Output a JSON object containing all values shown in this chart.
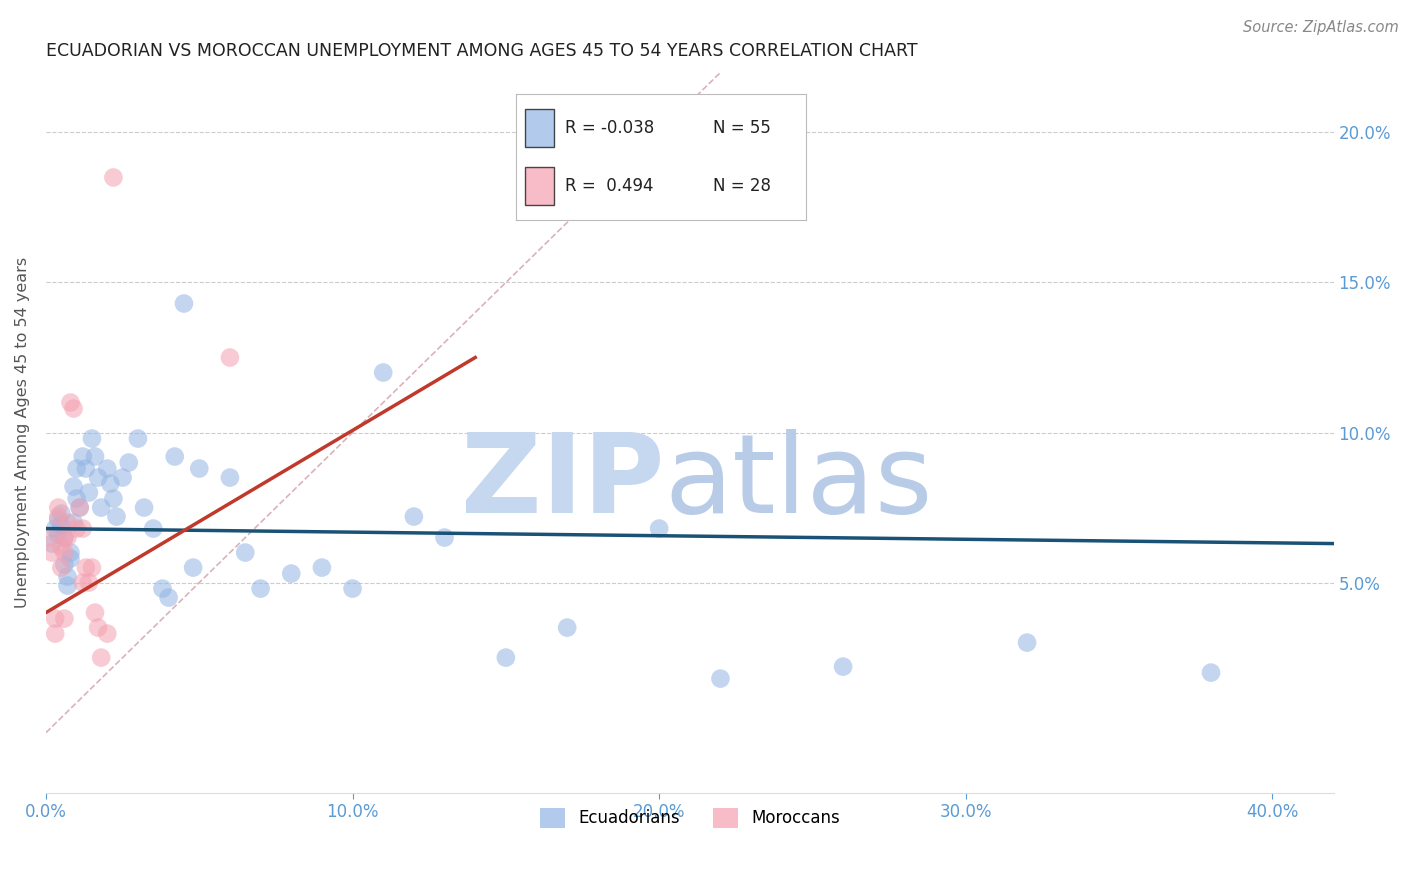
{
  "title": "ECUADORIAN VS MOROCCAN UNEMPLOYMENT AMONG AGES 45 TO 54 YEARS CORRELATION CHART",
  "source": "Source: ZipAtlas.com",
  "ylabel": "Unemployment Among Ages 45 to 54 years",
  "xlim": [
    0.0,
    0.42
  ],
  "ylim": [
    -0.02,
    0.22
  ],
  "x_ticks": [
    0.0,
    0.1,
    0.2,
    0.3,
    0.4
  ],
  "x_tick_labels": [
    "0.0%",
    "10.0%",
    "20.0%",
    "30.0%",
    "40.0%"
  ],
  "y_ticks": [
    0.05,
    0.1,
    0.15,
    0.2
  ],
  "y_tick_labels": [
    "5.0%",
    "10.0%",
    "15.0%",
    "20.0%"
  ],
  "ecuadorian_color": "#92b4e3",
  "moroccan_color": "#f4a0b0",
  "blue_line_color": "#1a5276",
  "red_line_color": "#c0392b",
  "diagonal_color": "#d0a0a8",
  "watermark_zip_color": "#c5d8f0",
  "watermark_atlas_color": "#b8cce8",
  "axis_label_color": "#5b9bd5",
  "tick_color": "#5b9bd5",
  "legend_r1": "R = -0.038",
  "legend_n1": "N = 55",
  "legend_r2": "R =  0.494",
  "legend_n2": "N = 28",
  "ecuadorian_x": [
    0.002,
    0.003,
    0.004,
    0.004,
    0.005,
    0.005,
    0.006,
    0.006,
    0.007,
    0.007,
    0.008,
    0.008,
    0.009,
    0.009,
    0.01,
    0.01,
    0.011,
    0.012,
    0.013,
    0.014,
    0.015,
    0.016,
    0.017,
    0.018,
    0.02,
    0.021,
    0.022,
    0.023,
    0.025,
    0.027,
    0.03,
    0.032,
    0.035,
    0.038,
    0.04,
    0.042,
    0.045,
    0.048,
    0.05,
    0.06,
    0.065,
    0.07,
    0.08,
    0.09,
    0.1,
    0.11,
    0.12,
    0.13,
    0.15,
    0.17,
    0.2,
    0.22,
    0.26,
    0.32,
    0.38
  ],
  "ecuadorian_y": [
    0.063,
    0.068,
    0.066,
    0.071,
    0.069,
    0.073,
    0.065,
    0.056,
    0.052,
    0.049,
    0.06,
    0.058,
    0.082,
    0.07,
    0.088,
    0.078,
    0.075,
    0.092,
    0.088,
    0.08,
    0.098,
    0.092,
    0.085,
    0.075,
    0.088,
    0.083,
    0.078,
    0.072,
    0.085,
    0.09,
    0.098,
    0.075,
    0.068,
    0.048,
    0.045,
    0.092,
    0.143,
    0.055,
    0.088,
    0.085,
    0.06,
    0.048,
    0.053,
    0.055,
    0.048,
    0.12,
    0.072,
    0.065,
    0.025,
    0.035,
    0.068,
    0.018,
    0.022,
    0.03,
    0.02
  ],
  "moroccan_x": [
    0.001,
    0.002,
    0.003,
    0.003,
    0.004,
    0.004,
    0.005,
    0.005,
    0.006,
    0.006,
    0.006,
    0.007,
    0.007,
    0.008,
    0.009,
    0.01,
    0.011,
    0.012,
    0.012,
    0.013,
    0.014,
    0.015,
    0.016,
    0.017,
    0.018,
    0.02,
    0.022,
    0.06
  ],
  "moroccan_y": [
    0.065,
    0.06,
    0.038,
    0.033,
    0.075,
    0.072,
    0.062,
    0.055,
    0.065,
    0.06,
    0.038,
    0.07,
    0.065,
    0.11,
    0.108,
    0.068,
    0.075,
    0.068,
    0.05,
    0.055,
    0.05,
    0.055,
    0.04,
    0.035,
    0.025,
    0.033,
    0.185,
    0.125
  ],
  "blue_line_x": [
    0.0,
    0.42
  ],
  "blue_line_y": [
    0.068,
    0.063
  ],
  "red_line_x": [
    0.0,
    0.14
  ],
  "red_line_y": [
    0.04,
    0.125
  ]
}
